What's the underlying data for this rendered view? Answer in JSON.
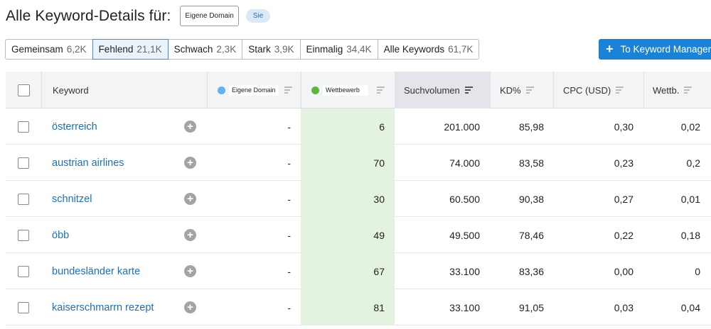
{
  "header": {
    "title": "Alle Keyword-Details für:",
    "domain_label": "Eigene Domain",
    "badge": "Sie"
  },
  "filters": [
    {
      "label": "Gemeinsam",
      "count": "6,2K",
      "active": false
    },
    {
      "label": "Fehlend",
      "count": "21,1K",
      "active": true
    },
    {
      "label": "Schwach",
      "count": "2,3K",
      "active": false
    },
    {
      "label": "Stark",
      "count": "3,9K",
      "active": false
    },
    {
      "label": "Einmalig",
      "count": "34,4K",
      "active": false
    },
    {
      "label": "Alle Keywords",
      "count": "61,7K",
      "active": false
    }
  ],
  "toolbar": {
    "keyword_manager_label": "To Keyword Manager"
  },
  "table": {
    "columns": {
      "keyword": "Keyword",
      "own_domain": "Eigene Domain",
      "competitor": "Wettbewerb",
      "volume": "Suchvolumen",
      "kd": "KD%",
      "cpc": "CPC (USD)",
      "competition": "Wettb."
    },
    "rows": [
      {
        "keyword": "österreich",
        "own": "-",
        "comp": "6",
        "volume": "201.000",
        "kd": "85,98",
        "cpc": "0,30",
        "competition": "0,02"
      },
      {
        "keyword": "austrian airlines",
        "own": "-",
        "comp": "70",
        "volume": "74.000",
        "kd": "83,58",
        "cpc": "0,23",
        "competition": "0,2"
      },
      {
        "keyword": "schnitzel",
        "own": "-",
        "comp": "30",
        "volume": "60.500",
        "kd": "90,38",
        "cpc": "0,27",
        "competition": "0,01"
      },
      {
        "keyword": "öbb",
        "own": "-",
        "comp": "49",
        "volume": "49.500",
        "kd": "78,46",
        "cpc": "0,22",
        "competition": "0,18"
      },
      {
        "keyword": "bundesländer karte",
        "own": "-",
        "comp": "67",
        "volume": "33.100",
        "kd": "83,36",
        "cpc": "0,00",
        "competition": "0"
      },
      {
        "keyword": "kaiserschmarrn rezept",
        "own": "-",
        "comp": "81",
        "volume": "33.100",
        "kd": "91,05",
        "cpc": "0,03",
        "competition": "0,04"
      }
    ]
  },
  "colors": {
    "accent": "#1a83d8",
    "keyword_link": "#1e6fb8",
    "own_domain_dot": "#6aaef0",
    "competitor_dot": "#59b740",
    "competitor_column_bg": "#e4f3df"
  },
  "icons": {
    "add": "plus-circle-icon",
    "sort": "sort-icon",
    "button_plus": "plus-icon"
  }
}
